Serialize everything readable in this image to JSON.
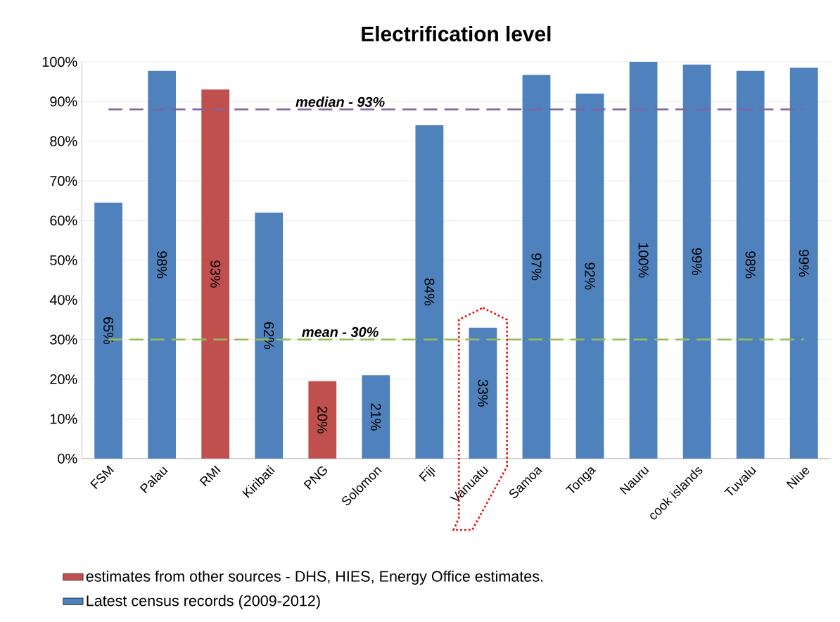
{
  "chart_data": {
    "type": "bar",
    "title": "Electrification level",
    "categories": [
      "FSM",
      "Palau",
      "RMI",
      "Kiribati",
      "PNG",
      "Solomon",
      "Fiji",
      "Vanuatu",
      "Samoa",
      "Tonga",
      "Nauru",
      "cook islands",
      "Tuvalu",
      "Niue"
    ],
    "series": [
      {
        "name": "estimates from other sources - DHS, HIES, Energy Office estimates.",
        "color": "#c0504d",
        "values": [
          null,
          null,
          93,
          null,
          19.5,
          null,
          null,
          null,
          null,
          null,
          null,
          null,
          null,
          null
        ],
        "value_labels": [
          null,
          null,
          "93%",
          null,
          "20%",
          null,
          null,
          null,
          null,
          null,
          null,
          null,
          null,
          null
        ]
      },
      {
        "name": "Latest census records (2009-2012)",
        "color": "#4f81bd",
        "values": [
          64.5,
          97.7,
          null,
          62,
          null,
          21,
          84,
          33,
          96.7,
          92,
          100,
          99.3,
          97.7,
          98.5
        ],
        "value_labels": [
          "65%",
          "98%",
          null,
          "62%",
          null,
          "21%",
          "84%",
          "33%",
          "97%",
          "92%",
          "100%",
          "99%",
          "98%",
          "99%"
        ]
      }
    ],
    "ylim": [
      0,
      100
    ],
    "yticks": [
      {
        "value": 0,
        "label": "0%"
      },
      {
        "value": 10,
        "label": "10%"
      },
      {
        "value": 20,
        "label": "20%"
      },
      {
        "value": 30,
        "label": "30%"
      },
      {
        "value": 40,
        "label": "40%"
      },
      {
        "value": 50,
        "label": "50%"
      },
      {
        "value": 60,
        "label": "60%"
      },
      {
        "value": 70,
        "label": "70%"
      },
      {
        "value": 80,
        "label": "80%"
      },
      {
        "value": 90,
        "label": "90%"
      },
      {
        "value": 100,
        "label": "100%"
      }
    ],
    "ref_lines": [
      {
        "axis": "y",
        "value": 88,
        "label": "median - 93%",
        "color": "#8064a2",
        "line_style": "dashed"
      },
      {
        "axis": "y",
        "value": 30,
        "label": "mean - 30%",
        "color": "#9bbb59",
        "line_style": "dashed"
      }
    ],
    "grid": "y",
    "legend": "bottom"
  }
}
